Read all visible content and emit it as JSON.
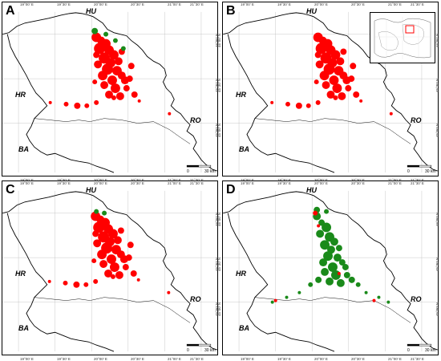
{
  "panels": [
    {
      "label": "A"
    },
    {
      "label": "B"
    },
    {
      "label": "C"
    },
    {
      "label": "D"
    }
  ],
  "countries": {
    "hu": "HU",
    "hr": "HR",
    "ro": "RO",
    "ba": "BA"
  },
  "ticks_top": [
    "19°00' E",
    "19°30' E",
    "20°00' E",
    "20°30' E",
    "21°00' E",
    "21°30' E"
  ],
  "ticks_side": [
    "46°00' N",
    "45°30' N",
    "45°00' N"
  ],
  "scale": {
    "zero": "0",
    "value": "30 km"
  },
  "colors": {
    "red": "#ff0000",
    "green": "#1a8a1a",
    "grid": "#bbbbbb",
    "inset_box": "#ff0000"
  }
}
